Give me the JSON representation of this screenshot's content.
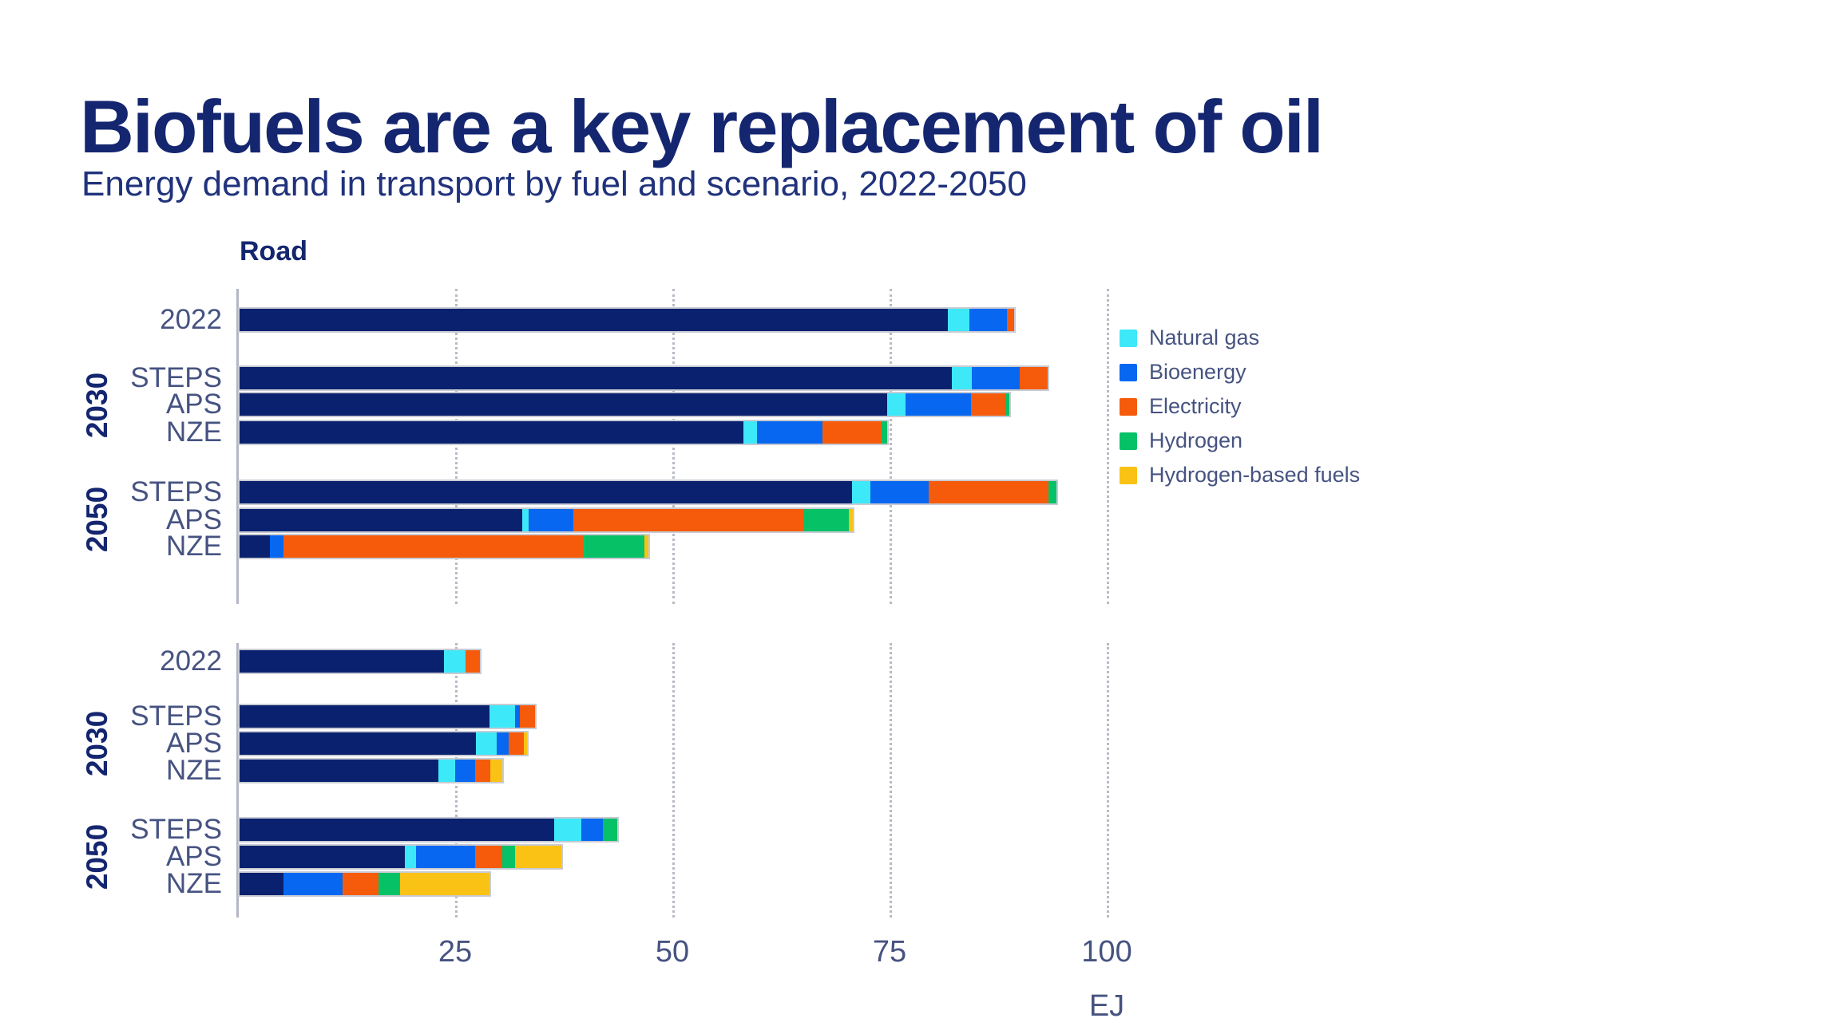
{
  "page": {
    "title": "Biofuels are a key replacement of oil",
    "subtitle": "Energy demand in transport by fuel and scenario, 2022-2050"
  },
  "colors": {
    "title_navy": "#14266F",
    "label_slate": "#465381",
    "axis_line": "#B3B7C2",
    "gridline": "#B7BBC6",
    "oil": "#09216E",
    "natural_gas": "#3DE8F8",
    "bioenergy": "#0767F0",
    "electricity": "#F55B0A",
    "hydrogen": "#07C167",
    "hydrogen_based_fuels": "#F9C215"
  },
  "legend": {
    "items": [
      {
        "key": "natural_gas",
        "label": "Natural gas"
      },
      {
        "key": "bioenergy",
        "label": "Bioenergy"
      },
      {
        "key": "electricity",
        "label": "Electricity"
      },
      {
        "key": "hydrogen",
        "label": "Hydrogen"
      },
      {
        "key": "hydrogen_based_fuels",
        "label": "Hydrogen-based fuels"
      }
    ]
  },
  "x_axis": {
    "min": 0,
    "max": 100,
    "ticks": [
      25,
      50,
      75,
      100
    ],
    "unit_label": "EJ"
  },
  "chart_data": [
    {
      "type": "bar",
      "orientation": "horizontal",
      "stacked": true,
      "title": "Road",
      "xlabel": "EJ",
      "xlim": [
        0,
        100
      ],
      "xticks": [
        25,
        50,
        75,
        100
      ],
      "grid": "dotted-vertical",
      "legend_position": "right",
      "series_order": [
        "oil",
        "natural_gas",
        "bioenergy",
        "electricity",
        "hydrogen",
        "hydrogen_based_fuels"
      ],
      "note": "dark navy first segment (oil) is not shown in the legend",
      "groups": [
        {
          "label": "",
          "rows": [
            {
              "label": "2022",
              "values": {
                "oil": 81.5,
                "natural_gas": 2.5,
                "bioenergy": 4.3,
                "electricity": 0.9,
                "hydrogen": 0,
                "hydrogen_based_fuels": 0
              }
            }
          ]
        },
        {
          "label": "2030",
          "rows": [
            {
              "label": "STEPS",
              "values": {
                "oil": 82.0,
                "natural_gas": 2.3,
                "bioenergy": 5.5,
                "electricity": 3.2,
                "hydrogen": 0,
                "hydrogen_based_fuels": 0
              }
            },
            {
              "label": "APS",
              "values": {
                "oil": 74.5,
                "natural_gas": 2.2,
                "bioenergy": 7.5,
                "electricity": 4.0,
                "hydrogen": 0.4,
                "hydrogen_based_fuels": 0
              }
            },
            {
              "label": "NZE",
              "values": {
                "oil": 58.0,
                "natural_gas": 1.6,
                "bioenergy": 7.5,
                "electricity": 6.8,
                "hydrogen": 0.6,
                "hydrogen_based_fuels": 0
              }
            }
          ]
        },
        {
          "label": "2050",
          "rows": [
            {
              "label": "STEPS",
              "values": {
                "oil": 70.5,
                "natural_gas": 2.1,
                "bioenergy": 6.7,
                "electricity": 13.8,
                "hydrogen": 0.9,
                "hydrogen_based_fuels": 0
              }
            },
            {
              "label": "APS",
              "values": {
                "oil": 32.5,
                "natural_gas": 0.8,
                "bioenergy": 5.1,
                "electricity": 26.5,
                "hydrogen": 5.2,
                "hydrogen_based_fuels": 0.5
              }
            },
            {
              "label": "NZE",
              "values": {
                "oil": 3.5,
                "natural_gas": 0,
                "bioenergy": 1.6,
                "electricity": 34.5,
                "hydrogen": 7.0,
                "hydrogen_based_fuels": 0.5
              }
            }
          ]
        }
      ]
    },
    {
      "type": "bar",
      "orientation": "horizontal",
      "stacked": true,
      "title": "",
      "xlabel": "EJ",
      "xlim": [
        0,
        100
      ],
      "xticks": [
        25,
        50,
        75,
        100
      ],
      "grid": "dotted-vertical",
      "series_order": [
        "oil",
        "natural_gas",
        "bioenergy",
        "electricity",
        "hydrogen",
        "hydrogen_based_fuels"
      ],
      "groups": [
        {
          "label": "",
          "rows": [
            {
              "label": "2022",
              "values": {
                "oil": 23.5,
                "natural_gas": 2.5,
                "bioenergy": 0,
                "electricity": 1.7,
                "hydrogen": 0,
                "hydrogen_based_fuels": 0
              }
            }
          ]
        },
        {
          "label": "2030",
          "rows": [
            {
              "label": "STEPS",
              "values": {
                "oil": 28.8,
                "natural_gas": 2.9,
                "bioenergy": 0.6,
                "electricity": 1.7,
                "hydrogen": 0,
                "hydrogen_based_fuels": 0
              }
            },
            {
              "label": "APS",
              "values": {
                "oil": 27.2,
                "natural_gas": 2.4,
                "bioenergy": 1.4,
                "electricity": 1.7,
                "hydrogen": 0,
                "hydrogen_based_fuels": 0.4
              }
            },
            {
              "label": "NZE",
              "values": {
                "oil": 22.9,
                "natural_gas": 1.9,
                "bioenergy": 2.3,
                "electricity": 1.8,
                "hydrogen": 0,
                "hydrogen_based_fuels": 1.3
              }
            }
          ]
        },
        {
          "label": "2050",
          "rows": [
            {
              "label": "STEPS",
              "values": {
                "oil": 36.2,
                "natural_gas": 3.1,
                "bioenergy": 2.5,
                "electricity": 0,
                "hydrogen": 1.7,
                "hydrogen_based_fuels": 0
              }
            },
            {
              "label": "APS",
              "values": {
                "oil": 19.0,
                "natural_gas": 1.3,
                "bioenergy": 6.8,
                "electricity": 3.1,
                "hydrogen": 1.5,
                "hydrogen_based_fuels": 5.3
              }
            },
            {
              "label": "NZE",
              "values": {
                "oil": 5.1,
                "natural_gas": 0,
                "bioenergy": 6.8,
                "electricity": 4.1,
                "hydrogen": 2.5,
                "hydrogen_based_fuels": 10.3
              }
            }
          ]
        }
      ]
    }
  ]
}
